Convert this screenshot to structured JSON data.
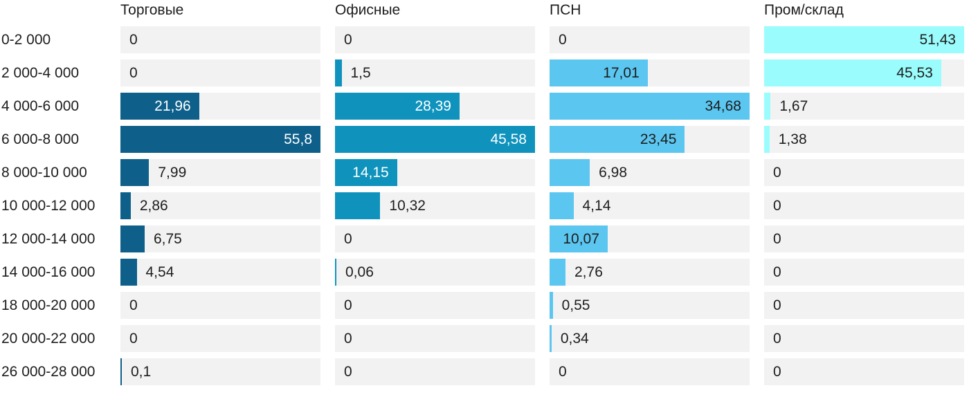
{
  "chart_data": {
    "type": "bar",
    "orientation": "horizontal",
    "layout": "small-multiples-4-columns",
    "value_format": "decimal-comma",
    "grid": false,
    "track_color": "#f2f2f2",
    "text_color": "#1d1d1d",
    "categories": [
      "0-2 000",
      "2 000-4 000",
      "4 000-6 000",
      "6 000-8 000",
      "8 000-10 000",
      "10 000-12 000",
      "12 000-14 000",
      "14 000-16 000",
      "18 000-20 000",
      "20 000-22 000",
      "26 000-28 000"
    ],
    "series": [
      {
        "name": "Торговые",
        "color": "#0e608a",
        "inside_label_color": "#ffffff",
        "axis_max": 55.8,
        "values": [
          0,
          0,
          21.96,
          55.8,
          7.99,
          2.86,
          6.75,
          4.54,
          0,
          0,
          0.1
        ],
        "labels": [
          "0",
          "0",
          "21,96",
          "55,8",
          "7,99",
          "2,86",
          "6,75",
          "4,54",
          "0",
          "0",
          "0,1"
        ],
        "label_inside": [
          false,
          false,
          true,
          true,
          false,
          false,
          false,
          false,
          false,
          false,
          false
        ]
      },
      {
        "name": "Офисные",
        "color": "#0f93bd",
        "inside_label_color": "#ffffff",
        "axis_max": 45.58,
        "values": [
          0,
          1.5,
          28.39,
          45.58,
          14.15,
          10.32,
          0,
          0.06,
          0,
          0,
          0
        ],
        "labels": [
          "0",
          "1,5",
          "28,39",
          "45,58",
          "14,15",
          "10,32",
          "0",
          "0,06",
          "0",
          "0",
          "0"
        ],
        "label_inside": [
          false,
          false,
          true,
          true,
          true,
          false,
          false,
          false,
          false,
          false,
          false
        ]
      },
      {
        "name": "ПСН",
        "color": "#5bc6f0",
        "inside_label_color": "#1d1d1d",
        "axis_max": 34.68,
        "values": [
          0,
          17.01,
          34.68,
          23.45,
          6.98,
          4.14,
          10.07,
          2.76,
          0.55,
          0.34,
          0
        ],
        "labels": [
          "0",
          "17,01",
          "34,68",
          "23,45",
          "6,98",
          "4,14",
          "10,07",
          "2,76",
          "0,55",
          "0,34",
          "0"
        ],
        "label_inside": [
          false,
          true,
          true,
          true,
          false,
          false,
          true,
          false,
          false,
          false,
          false
        ]
      },
      {
        "name": "Пром/склад",
        "color": "#9afcfc",
        "inside_label_color": "#1d1d1d",
        "axis_max": 51.43,
        "values": [
          51.43,
          45.53,
          1.67,
          1.38,
          0,
          0,
          0,
          0,
          0,
          0,
          0
        ],
        "labels": [
          "51,43",
          "45,53",
          "1,67",
          "1,38",
          "0",
          "0",
          "0",
          "0",
          "0",
          "0",
          "0"
        ],
        "label_inside": [
          true,
          true,
          false,
          false,
          false,
          false,
          false,
          false,
          false,
          false,
          false
        ]
      }
    ]
  }
}
